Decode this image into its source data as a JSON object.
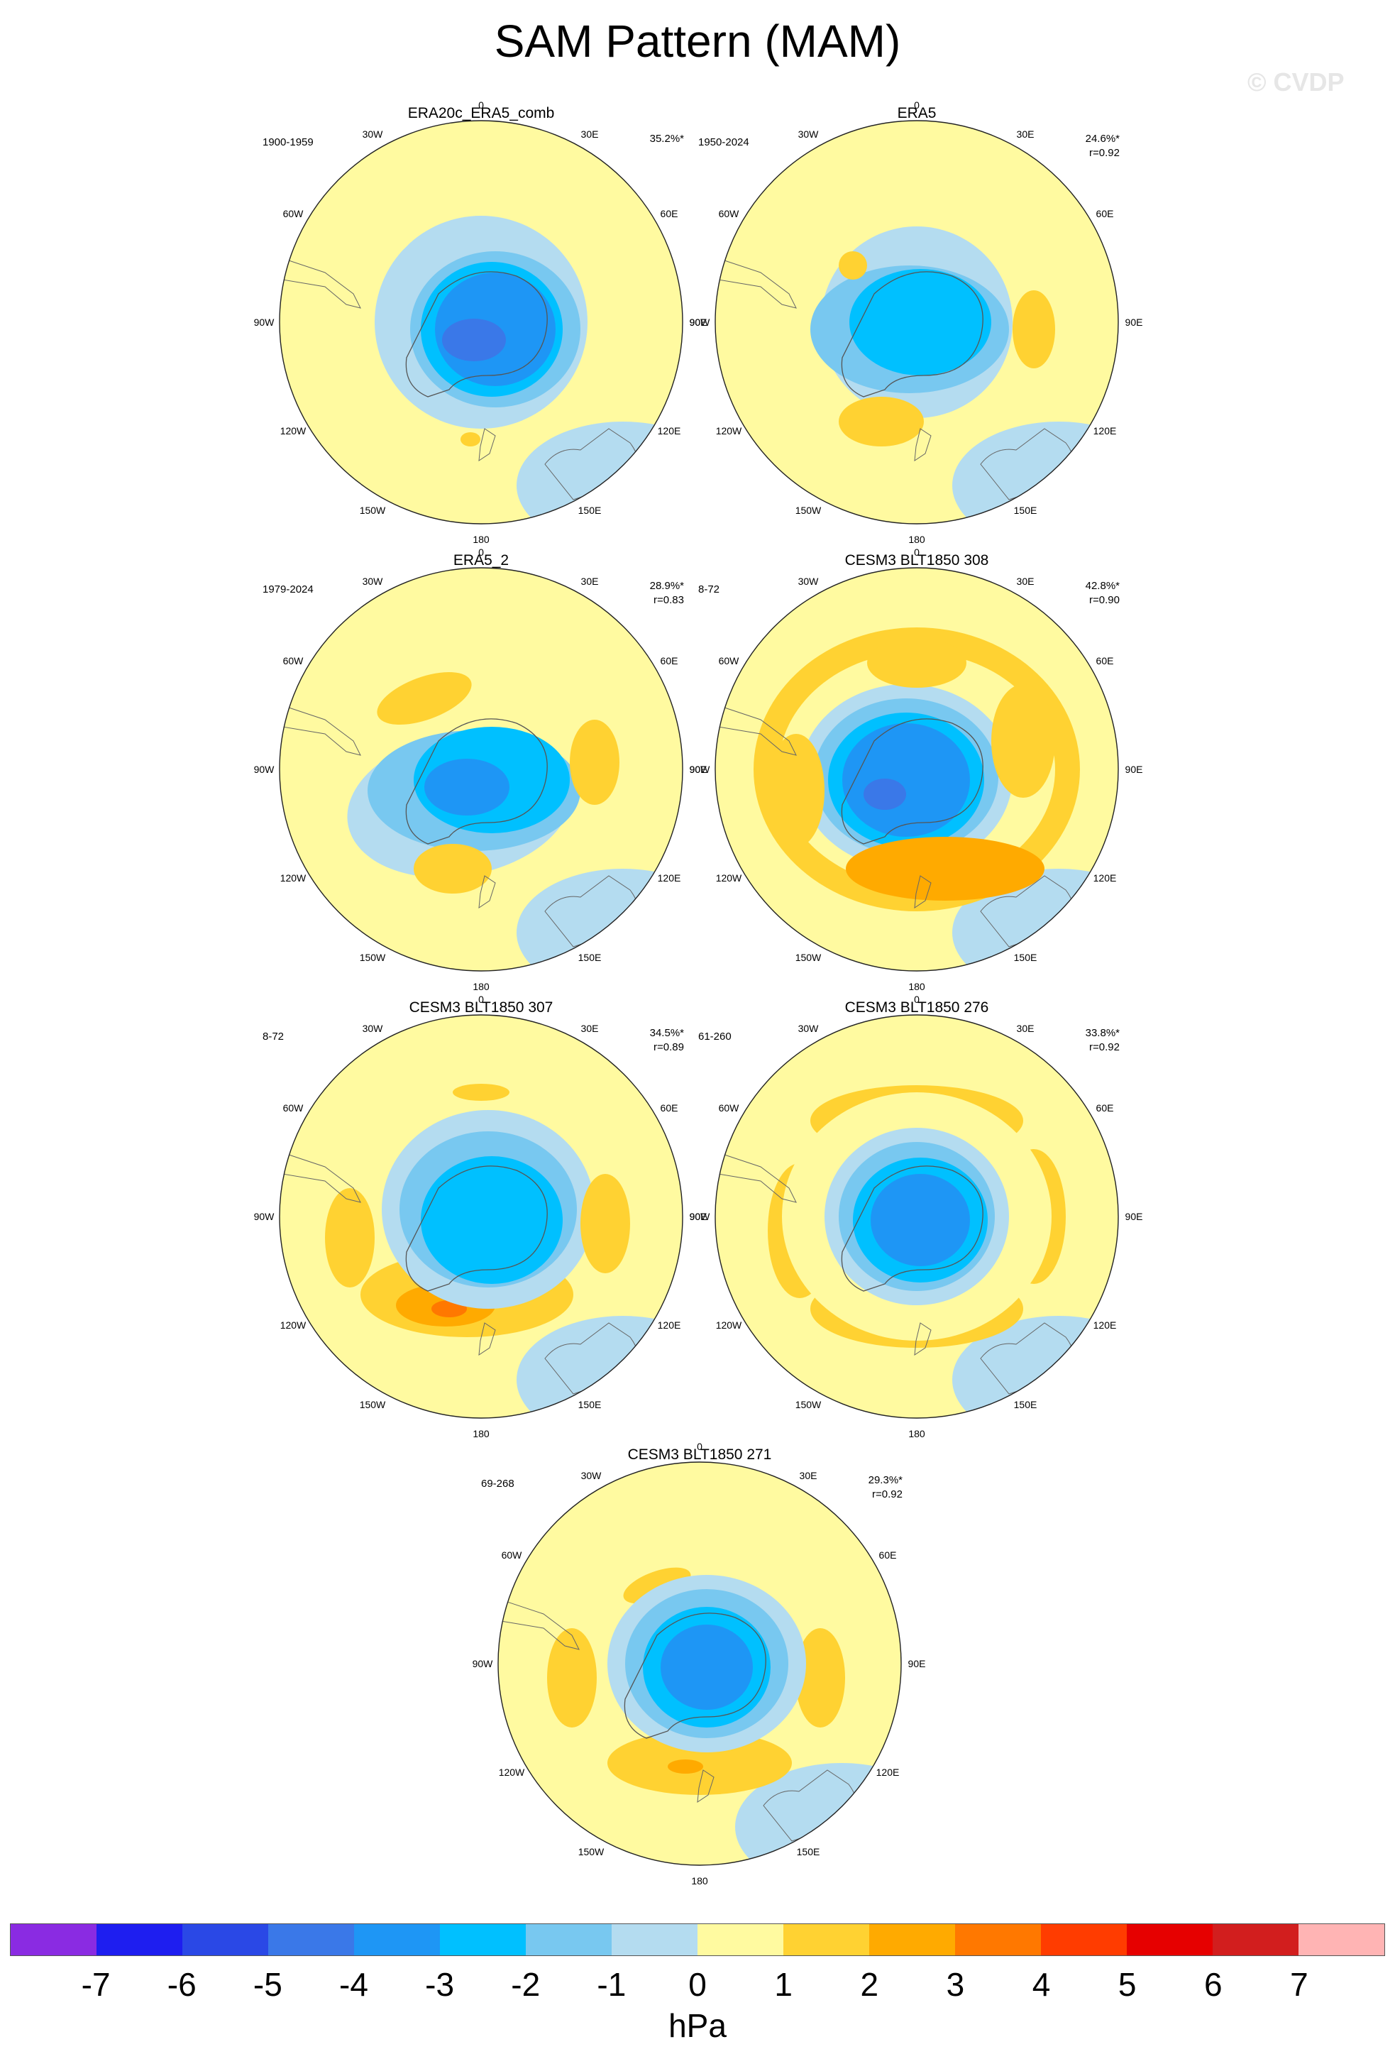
{
  "title": "SAM Pattern (MAM)",
  "watermark": "© CVDP",
  "lon_labels": [
    "0",
    "30E",
    "60E",
    "90E",
    "120E",
    "150E",
    "180",
    "150W",
    "120W",
    "90W",
    "60W",
    "30W"
  ],
  "panels": [
    {
      "title": "ERA20c_ERA5_comb",
      "period": "1900-1959",
      "pct": "35.2%*",
      "r": ""
    },
    {
      "title": "ERA5",
      "period": "1950-2024",
      "pct": "24.6%*",
      "r": "r=0.92"
    },
    {
      "title": "ERA5_2",
      "period": "1979-2024",
      "pct": "28.9%*",
      "r": "r=0.83"
    },
    {
      "title": "CESM3 BLT1850 308",
      "period": "8-72",
      "pct": "42.8%*",
      "r": "r=0.90"
    },
    {
      "title": "CESM3 BLT1850 307",
      "period": "8-72",
      "pct": "34.5%*",
      "r": "r=0.89"
    },
    {
      "title": "CESM3 BLT1850 276",
      "period": "61-260",
      "pct": "33.8%*",
      "r": "r=0.92"
    },
    {
      "title": "CESM3 BLT1850 271",
      "period": "69-268",
      "pct": "29.3%*",
      "r": "r=0.92"
    }
  ],
  "colorbar": {
    "units": "hPa",
    "labels": [
      "-7",
      "-6",
      "-5",
      "-4",
      "-3",
      "-2",
      "-1",
      "0",
      "1",
      "2",
      "3",
      "4",
      "5",
      "6",
      "7"
    ],
    "colors": [
      "#8a2be2",
      "#1e1ef0",
      "#2a48e6",
      "#3a78e8",
      "#1e96f5",
      "#00c0ff",
      "#78c8f0",
      "#b4dcf0",
      "#fffaa0",
      "#ffd232",
      "#ffaa00",
      "#ff7800",
      "#ff3c00",
      "#e60000",
      "#d21e1e",
      "#ffb4b4"
    ]
  }
}
